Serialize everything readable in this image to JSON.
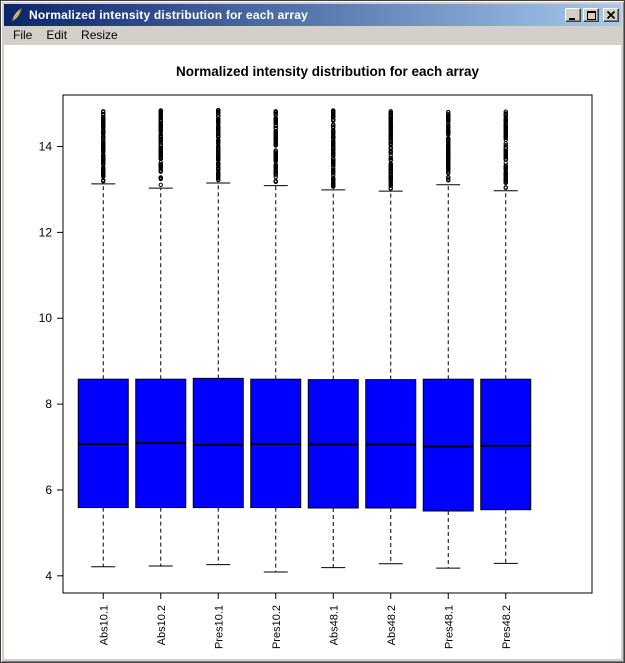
{
  "window": {
    "title": "Normalized intensity distribution for each array",
    "icon": "feather-icon",
    "controls": [
      "minimize",
      "maximize",
      "close"
    ]
  },
  "menu": {
    "items": [
      "File",
      "Edit",
      "Resize"
    ]
  },
  "colors": {
    "titlebar_gradient_start": "#0A246A",
    "titlebar_gradient_end": "#A6CAF0",
    "chrome": "#D4D0C8",
    "box_fill": "#0000FF"
  },
  "chart_data": {
    "type": "boxplot",
    "title": "Normalized intensity distribution for each array",
    "xlabel": "",
    "ylabel": "",
    "categories": [
      "Abs10.1",
      "Abs10.2",
      "Pres10.1",
      "Pres10.2",
      "Abs48.1",
      "Abs48.2",
      "Pres48.1",
      "Pres48.2"
    ],
    "y_ticks": [
      4,
      6,
      8,
      10,
      12,
      14
    ],
    "ylim": [
      3.6,
      15.2
    ],
    "xlim": [
      0.3,
      9.5
    ],
    "grid": false,
    "legend": "none",
    "box_color": "#0000FF",
    "series": [
      {
        "name": "Abs10.1",
        "whisker_low": 4.21,
        "q1": 5.59,
        "median": 7.07,
        "q3": 8.58,
        "whisker_high": 13.13,
        "outlier_max": 14.82
      },
      {
        "name": "Abs10.2",
        "whisker_low": 4.23,
        "q1": 5.59,
        "median": 7.09,
        "q3": 8.58,
        "whisker_high": 13.03,
        "outlier_max": 14.84
      },
      {
        "name": "Pres10.1",
        "whisker_low": 4.26,
        "q1": 5.59,
        "median": 7.05,
        "q3": 8.6,
        "whisker_high": 13.15,
        "outlier_max": 14.85
      },
      {
        "name": "Pres10.2",
        "whisker_low": 4.09,
        "q1": 5.59,
        "median": 7.07,
        "q3": 8.58,
        "whisker_high": 13.09,
        "outlier_max": 14.82
      },
      {
        "name": "Abs48.1",
        "whisker_low": 4.19,
        "q1": 5.58,
        "median": 7.06,
        "q3": 8.57,
        "whisker_high": 12.99,
        "outlier_max": 14.84
      },
      {
        "name": "Abs48.2",
        "whisker_low": 4.28,
        "q1": 5.58,
        "median": 7.06,
        "q3": 8.57,
        "whisker_high": 12.96,
        "outlier_max": 14.82
      },
      {
        "name": "Pres48.1",
        "whisker_low": 4.18,
        "q1": 5.51,
        "median": 7.01,
        "q3": 8.58,
        "whisker_high": 13.11,
        "outlier_max": 14.8
      },
      {
        "name": "Pres48.2",
        "whisker_low": 4.29,
        "q1": 5.54,
        "median": 7.03,
        "q3": 8.58,
        "whisker_high": 12.97,
        "outlier_max": 14.81
      }
    ]
  }
}
